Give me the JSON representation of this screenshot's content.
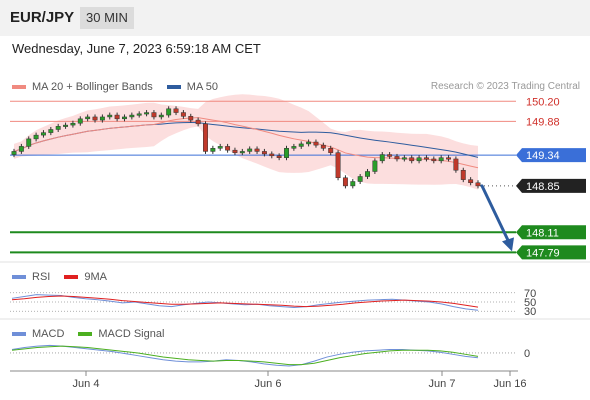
{
  "header": {
    "pair": "EUR/JPY",
    "timeframe": "30 MIN"
  },
  "datetime": "Wednesday, June 7, 2023 6:59:18 AM CET",
  "legend_main": [
    {
      "label": "MA 20 + Bollinger Bands",
      "color": "#f08a80"
    },
    {
      "label": "MA 50",
      "color": "#2e5c9e"
    }
  ],
  "credit": "Research © 2023 Trading Central",
  "legend_rsi": [
    {
      "label": "RSI",
      "color": "#6f8fd8"
    },
    {
      "label": "9MA",
      "color": "#e02020"
    }
  ],
  "legend_macd": [
    {
      "label": "MACD",
      "color": "#6f8fd8"
    },
    {
      "label": "MACD Signal",
      "color": "#4caf20"
    }
  ],
  "colors": {
    "resistance": "#f08a80",
    "pivot": "#3a6fd8",
    "support": "#1e8a1e",
    "current": "#222222",
    "band": "#fbd6d6",
    "bull": "#2a9d2a",
    "bear": "#c0392b",
    "arrow": "#2e5c9e"
  },
  "chart_data": {
    "type": "candlestick",
    "y_range": [
      147.7,
      150.3
    ],
    "levels": [
      {
        "value": 150.2,
        "label": "150.20",
        "kind": "resistance"
      },
      {
        "value": 149.88,
        "label": "149.88",
        "kind": "resistance"
      },
      {
        "value": 149.34,
        "label": "149.34",
        "kind": "pivot"
      },
      {
        "value": 148.85,
        "label": "148.85",
        "kind": "current"
      },
      {
        "value": 148.11,
        "label": "148.11",
        "kind": "support"
      },
      {
        "value": 147.79,
        "label": "147.79",
        "kind": "support"
      }
    ],
    "x_ticks": [
      "Jun 4",
      "Jun 6",
      "Jun 7",
      "Jun 16"
    ],
    "close": [
      149.4,
      149.48,
      149.6,
      149.66,
      149.7,
      149.75,
      149.8,
      149.82,
      149.85,
      149.92,
      149.95,
      149.9,
      149.95,
      149.98,
      149.92,
      149.95,
      149.98,
      150.0,
      150.02,
      149.95,
      149.98,
      150.08,
      150.02,
      149.96,
      149.9,
      149.84,
      149.4,
      149.45,
      149.48,
      149.42,
      149.38,
      149.4,
      149.44,
      149.4,
      149.36,
      149.33,
      149.3,
      149.45,
      149.48,
      149.52,
      149.55,
      149.5,
      149.45,
      149.38,
      148.98,
      148.85,
      148.92,
      149.0,
      149.08,
      149.25,
      149.35,
      149.32,
      149.28,
      149.3,
      149.25,
      149.3,
      149.28,
      149.25,
      149.3,
      149.28,
      149.1,
      148.95,
      148.9,
      148.85
    ],
    "rsi_levels": [
      70,
      50,
      30
    ],
    "macd_levels": [
      0
    ],
    "rsi": [
      58,
      62,
      66,
      65,
      64,
      60,
      57,
      55,
      52,
      48,
      50,
      46,
      42,
      40,
      44,
      47,
      50,
      48,
      46,
      44,
      45,
      42,
      40,
      38,
      40,
      44,
      47,
      50,
      52,
      54,
      55,
      56,
      54,
      52,
      50,
      46,
      40,
      35,
      32
    ],
    "rsi_ma": [
      55,
      57,
      60,
      62,
      63,
      62,
      60,
      58,
      56,
      53,
      51,
      49,
      47,
      45,
      45,
      46,
      47,
      48,
      47,
      46,
      45,
      44,
      43,
      41,
      40,
      41,
      43,
      45,
      48,
      50,
      52,
      53,
      54,
      53,
      52,
      50,
      47,
      43,
      39
    ],
    "macd": [
      0.05,
      0.08,
      0.1,
      0.11,
      0.1,
      0.08,
      0.06,
      0.04,
      0.02,
      -0.01,
      -0.04,
      -0.07,
      -0.1,
      -0.12,
      -0.13,
      -0.13,
      -0.12,
      -0.1,
      -0.11,
      -0.13,
      -0.16,
      -0.18,
      -0.19,
      -0.17,
      -0.12,
      -0.06,
      -0.02,
      0.01,
      0.03,
      0.04,
      0.05,
      0.05,
      0.04,
      0.03,
      0.01,
      -0.02,
      -0.05,
      -0.07
    ],
    "macd_signal": [
      0.04,
      0.06,
      0.08,
      0.09,
      0.1,
      0.09,
      0.08,
      0.06,
      0.04,
      0.02,
      0.0,
      -0.03,
      -0.06,
      -0.08,
      -0.1,
      -0.11,
      -0.12,
      -0.11,
      -0.11,
      -0.12,
      -0.13,
      -0.15,
      -0.17,
      -0.17,
      -0.15,
      -0.11,
      -0.07,
      -0.04,
      -0.01,
      0.01,
      0.03,
      0.04,
      0.04,
      0.04,
      0.03,
      0.01,
      -0.02,
      -0.05
    ]
  }
}
